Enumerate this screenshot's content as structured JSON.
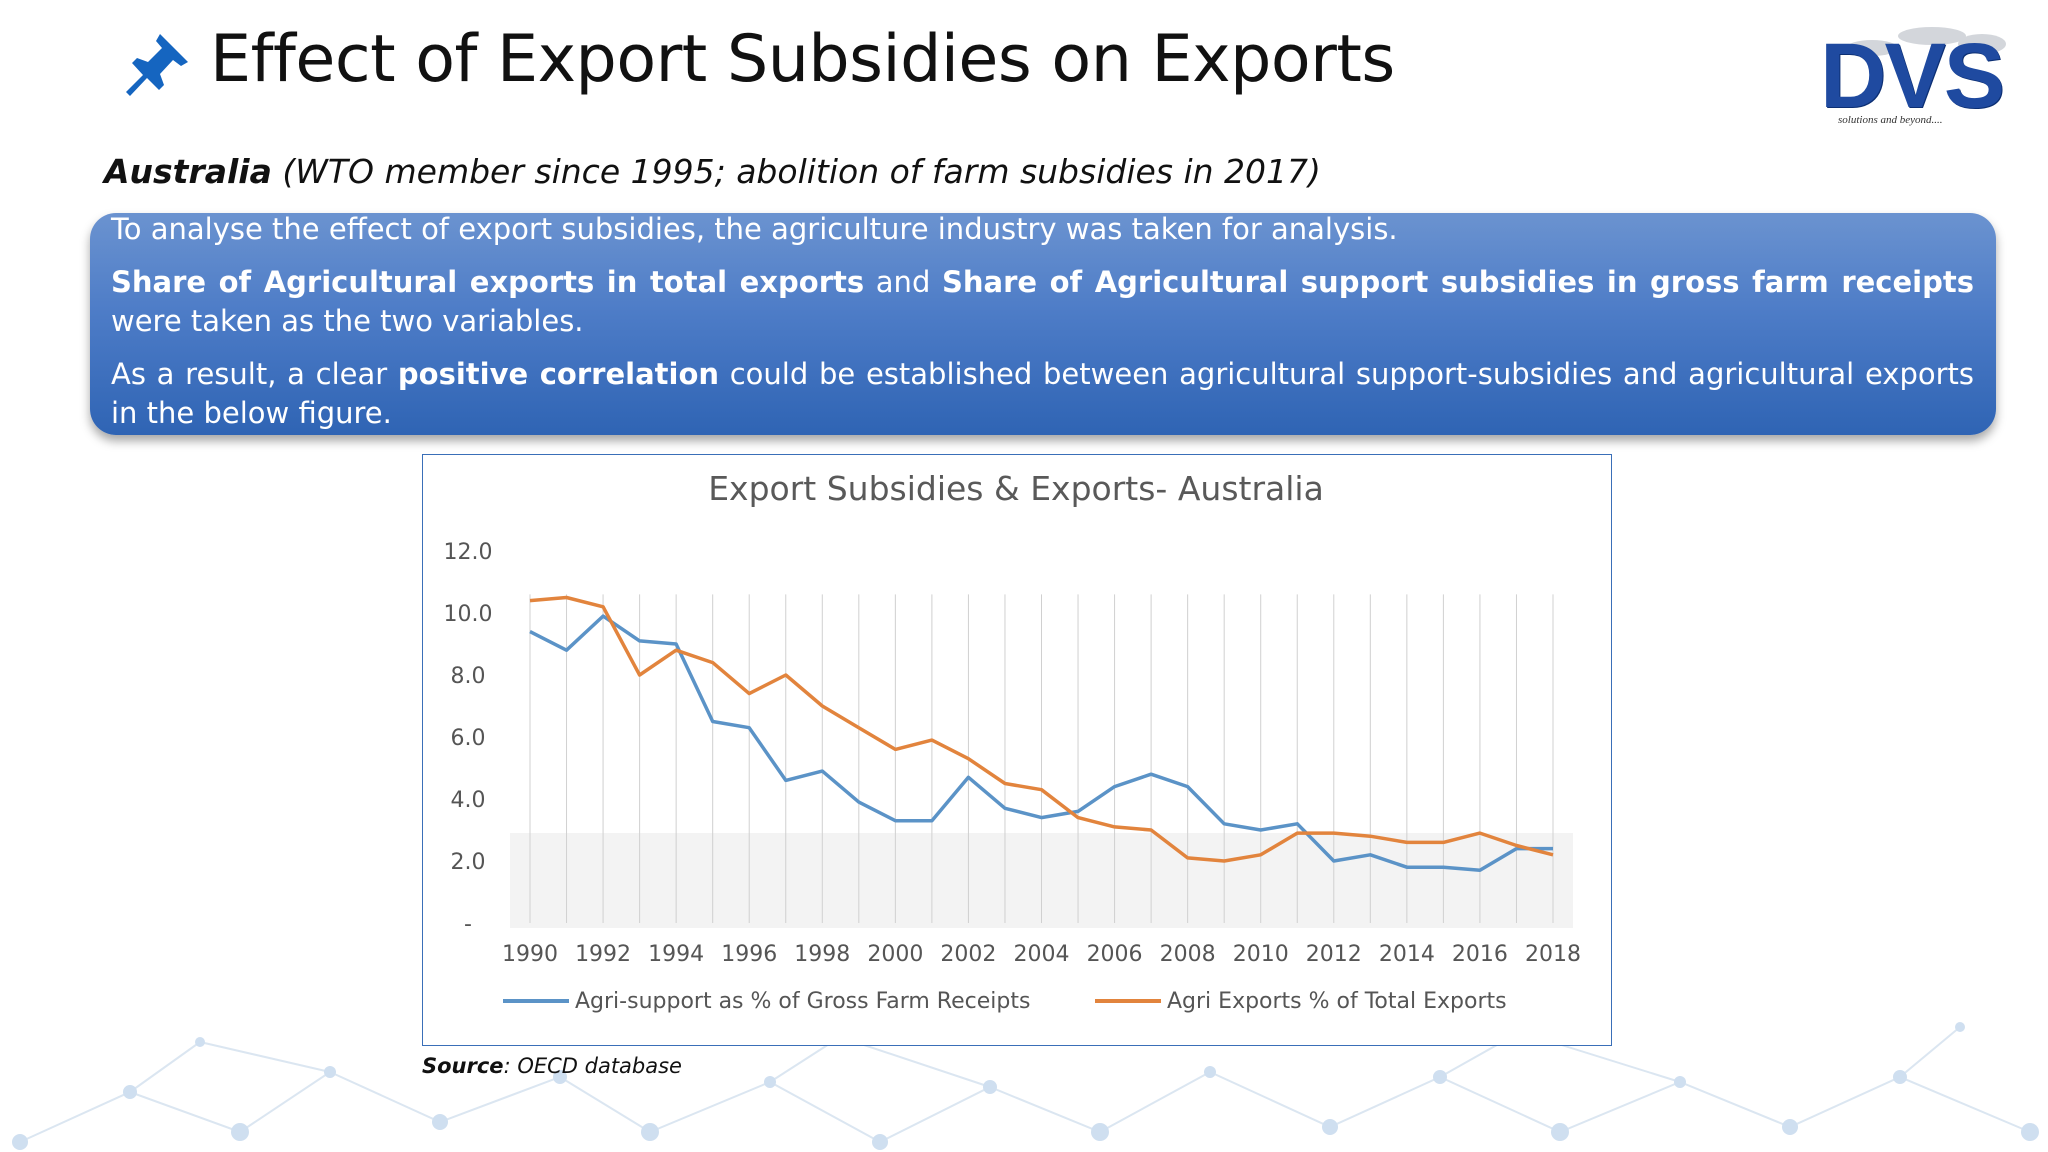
{
  "slide": {
    "title": "Effect of Export Subsidies on Exports",
    "subtitle_country": "Australia",
    "subtitle_detail": " (WTO member since 1995; abolition of farm subsidies in 2017)",
    "logo_text": "DVS",
    "logo_tagline": "solutions and beyond....",
    "icons": [
      "pushpin-icon",
      "network-background"
    ]
  },
  "infobox": {
    "p1": "To analyse the effect of export subsidies, the agriculture industry was taken for analysis.",
    "p2_bold1": "Share of Agricultural exports in total exports",
    "p2_text1": " and ",
    "p2_bold2": "Share of Agricultural support subsidies in gross farm receipts",
    "p2_text2": " were taken as the two variables.",
    "p3_text1": "As a result, a clear ",
    "p3_bold": "positive correlation",
    "p3_text2": " could be established between agricultural support-subsidies and agricultural exports in the below figure."
  },
  "source": {
    "label": "Source",
    "text": ": OECD database"
  },
  "colors": {
    "title": "#111111",
    "box_top": "#6b93d0",
    "box_bottom": "#2f64b4",
    "logo": "#1f4aa0",
    "series_blue": "#5b93c7",
    "series_orange": "#e2843d"
  },
  "chart_data": {
    "type": "line",
    "title": "Export Subsidies & Exports- Australia",
    "ylim": [
      0,
      12
    ],
    "yticks": [
      "12.0",
      "10.0",
      "8.0",
      "6.0",
      "4.0",
      "2.0",
      "-"
    ],
    "ytick_values": [
      12,
      10,
      8,
      6,
      4,
      2,
      0
    ],
    "xtick_labels": [
      "1990",
      "1992",
      "1994",
      "1996",
      "1998",
      "2000",
      "2002",
      "2004",
      "2006",
      "2008",
      "2010",
      "2012",
      "2014",
      "2016",
      "2018"
    ],
    "x": [
      1990,
      1991,
      1992,
      1993,
      1994,
      1995,
      1996,
      1997,
      1998,
      1999,
      2000,
      2001,
      2002,
      2003,
      2004,
      2005,
      2006,
      2007,
      2008,
      2009,
      2010,
      2011,
      2012,
      2013,
      2014,
      2015,
      2016,
      2017,
      2018
    ],
    "grid": "vertical",
    "legend_position": "bottom",
    "series": [
      {
        "name": "Agri-support as % of Gross Farm Receipts",
        "color": "#5b93c7",
        "values": [
          9.4,
          8.8,
          9.9,
          9.1,
          9.0,
          6.5,
          6.3,
          4.6,
          4.9,
          3.9,
          3.3,
          3.3,
          4.7,
          3.7,
          3.4,
          3.6,
          4.4,
          4.8,
          4.4,
          3.2,
          3.0,
          3.2,
          2.0,
          2.2,
          1.8,
          1.8,
          1.7,
          2.4,
          2.4
        ]
      },
      {
        "name": "Agri Exports % of Total Exports",
        "color": "#e2843d",
        "values": [
          10.4,
          10.5,
          10.2,
          8.0,
          8.8,
          8.4,
          7.4,
          8.0,
          7.0,
          6.3,
          5.6,
          5.9,
          5.3,
          4.5,
          4.3,
          3.4,
          3.1,
          3.0,
          2.1,
          2.0,
          2.2,
          2.9,
          2.9,
          2.8,
          2.6,
          2.6,
          2.9,
          2.5,
          2.2
        ]
      }
    ]
  }
}
